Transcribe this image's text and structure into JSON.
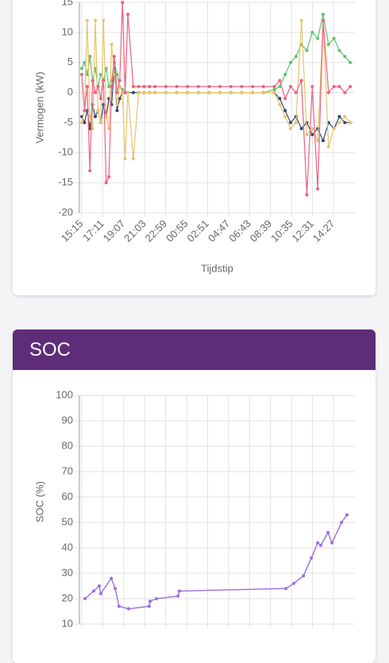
{
  "chart_data": [
    {
      "type": "line",
      "ylabel": "Vermogen (kW)",
      "xlabel": "Tijdstip",
      "ylim": [
        -20,
        15
      ],
      "yticks": [
        15,
        10,
        5,
        0,
        -5,
        -10,
        -15,
        -20
      ],
      "xticks": [
        "15:15",
        "17:11",
        "19:07",
        "21:03",
        "22:59",
        "00:55",
        "02:51",
        "04:47",
        "06:43",
        "08:39",
        "10:35",
        "12:31",
        "14:27"
      ],
      "grid": true,
      "x": [
        "15:15",
        "15:30",
        "15:45",
        "16:00",
        "16:15",
        "16:30",
        "16:45",
        "17:00",
        "17:15",
        "17:30",
        "17:45",
        "18:00",
        "18:15",
        "18:30",
        "18:45",
        "19:00",
        "19:15",
        "19:30",
        "20:00",
        "20:30",
        "21:00",
        "21:30",
        "22:00",
        "23:00",
        "00:00",
        "01:00",
        "02:00",
        "03:00",
        "04:00",
        "05:00",
        "06:00",
        "07:00",
        "08:00",
        "09:00",
        "09:30",
        "10:00",
        "10:30",
        "11:00",
        "11:30",
        "12:00",
        "12:30",
        "13:00",
        "13:30",
        "14:00",
        "14:30",
        "15:00",
        "15:30",
        "16:00"
      ],
      "series": [
        {
          "color": "#5cc46a",
          "values": [
            4,
            5,
            3,
            6,
            2,
            4,
            1,
            3,
            2,
            4,
            1,
            2,
            5,
            3,
            1,
            0.5,
            0,
            0,
            0,
            0,
            0,
            0,
            0,
            0,
            0,
            0,
            0,
            0,
            0,
            0,
            0,
            0,
            0,
            0.5,
            1,
            3,
            5,
            6,
            8,
            7,
            10,
            9,
            13,
            8,
            9,
            7,
            6,
            5
          ]
        },
        {
          "color": "#2f4a6e",
          "values": [
            -4,
            -5,
            -3,
            -6,
            -2,
            -4,
            -3,
            -5,
            -2,
            -4,
            -1,
            -2,
            4,
            -3,
            -1,
            0,
            0,
            0,
            0,
            0,
            0,
            0,
            0,
            0,
            0,
            0,
            0,
            0,
            0,
            0,
            0,
            0,
            0,
            0,
            -1,
            -3,
            -5,
            -4,
            -6,
            -5,
            -7,
            -6,
            -8,
            -5,
            -6,
            -4,
            -5,
            -5
          ]
        },
        {
          "color": "#e8c36b",
          "values": [
            -5,
            -3,
            12,
            -4,
            -6,
            12,
            -3,
            -5,
            12,
            -4,
            -6,
            8,
            3,
            -2,
            1,
            0,
            -11,
            0,
            -11,
            0,
            0,
            0,
            0,
            0,
            0,
            0,
            0,
            0,
            0,
            0,
            0,
            0,
            0,
            0,
            -2,
            -4,
            -6,
            -5,
            12,
            -7,
            -6,
            -8,
            12,
            -9,
            -6,
            -5,
            -4,
            -5
          ]
        },
        {
          "color": "#ee6080",
          "values": [
            3,
            -3,
            1,
            -13,
            2,
            0,
            1,
            -1,
            2,
            -15,
            -14,
            1,
            6,
            0,
            2,
            15,
            0,
            13,
            1,
            1,
            1,
            1,
            1,
            1,
            1,
            1,
            1,
            1,
            1,
            1,
            1,
            1,
            1,
            1,
            2,
            -1,
            1,
            0,
            2,
            -17,
            1,
            -16,
            12,
            0,
            1,
            1,
            0,
            1
          ]
        }
      ]
    },
    {
      "type": "line",
      "title": "SOC",
      "ylabel": "SOC (%)",
      "ylim": [
        10,
        100
      ],
      "yticks": [
        100,
        90,
        80,
        70,
        60,
        50,
        40,
        30,
        20,
        10
      ],
      "xticks": [
        "15:15",
        "17:11",
        "19:07",
        "21:03",
        "22:59",
        "00:55",
        "02:51",
        "04:47",
        "06:43",
        "08:39",
        "10:35",
        "12:31",
        "14:27"
      ],
      "grid": true,
      "x": [
        "15:33",
        "16:21",
        "16:52",
        "17:00",
        "17:58",
        "18:20",
        "18:41",
        "19:34",
        "21:28",
        "21:33",
        "22:08",
        "00:07",
        "00:15",
        "10:04",
        "10:48",
        "11:41",
        "12:25",
        "13:00",
        "13:17",
        "13:57",
        "14:19",
        "15:12",
        "15:42"
      ],
      "series": [
        {
          "color": "#9b6ee0",
          "values": [
            20,
            23,
            25,
            22,
            28,
            24,
            17,
            16,
            17,
            19,
            20,
            21,
            23,
            24,
            26,
            29,
            36,
            42,
            41,
            46,
            42,
            50,
            53
          ]
        }
      ]
    }
  ]
}
